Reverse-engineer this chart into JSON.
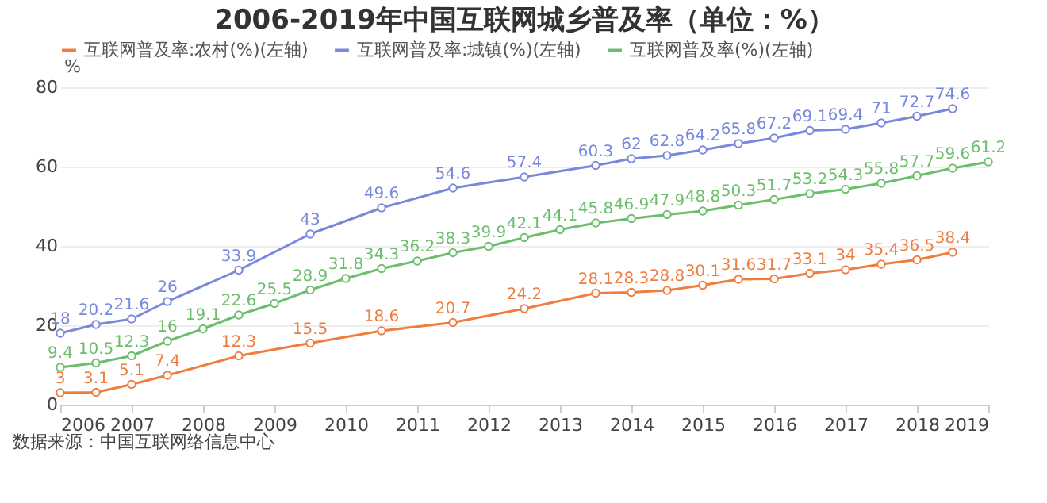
{
  "chart_data": {
    "type": "line",
    "title": "2006-2019年中国互联网城乡普及率（单位：%）",
    "ylabel": "%",
    "annotations": [
      "数据来源：中国互联网络信息中心"
    ],
    "xlim": [
      2006,
      2019
    ],
    "xticks": [
      2006,
      2007,
      2008,
      2009,
      2010,
      2011,
      2012,
      2013,
      2014,
      2015,
      2016,
      2017,
      2018,
      2019
    ],
    "ylim": [
      0,
      80
    ],
    "yticks": [
      0,
      20,
      40,
      60,
      80
    ],
    "grid": "y",
    "legend": "top left",
    "marker": "circle",
    "line_style": "solid",
    "data_labels": true,
    "series": [
      {
        "name": "互联网普及率:农村(%)(左轴)",
        "color": "#ee7d3f",
        "x": [
          2006,
          2006.5,
          2007,
          2007.5,
          2008.5,
          2009.5,
          2010.5,
          2011.5,
          2012.5,
          2013.5,
          2014,
          2014.5,
          2015,
          2015.5,
          2016,
          2016.5,
          2017,
          2017.5,
          2018,
          2018.5
        ],
        "values": [
          3,
          3.1,
          5.1,
          7.4,
          12.3,
          15.5,
          18.6,
          20.7,
          24.2,
          28.1,
          28.3,
          28.8,
          30.1,
          31.6,
          31.7,
          33.1,
          34,
          35.4,
          36.5,
          38.4
        ]
      },
      {
        "name": "互联网普及率:城镇(%)(左轴)",
        "color": "#7888dc",
        "x": [
          2006,
          2006.5,
          2007,
          2007.5,
          2008.5,
          2009.5,
          2010.5,
          2011.5,
          2012.5,
          2013.5,
          2014,
          2014.5,
          2015,
          2015.5,
          2016,
          2016.5,
          2017,
          2017.5,
          2018,
          2018.5
        ],
        "values": [
          18,
          20.2,
          21.6,
          26,
          33.9,
          43,
          49.6,
          54.6,
          57.4,
          60.3,
          62,
          62.8,
          64.2,
          65.8,
          67.2,
          69.1,
          69.4,
          71,
          72.7,
          74.6
        ]
      },
      {
        "name": "互联网普及率(%)(左轴)",
        "color": "#6cbd6c",
        "x": [
          2006,
          2006.5,
          2007,
          2007.5,
          2008,
          2008.5,
          2009,
          2009.5,
          2010,
          2010.5,
          2011,
          2011.5,
          2012,
          2012.5,
          2013,
          2013.5,
          2014,
          2014.5,
          2015,
          2015.5,
          2016,
          2016.5,
          2017,
          2017.5,
          2018,
          2018.5,
          2019
        ],
        "values": [
          9.4,
          10.5,
          12.3,
          16,
          19.1,
          22.6,
          25.5,
          28.9,
          31.8,
          34.3,
          36.2,
          38.3,
          39.9,
          42.1,
          44.1,
          45.8,
          46.9,
          47.9,
          48.8,
          50.3,
          51.7,
          53.2,
          54.3,
          55.8,
          57.7,
          59.6,
          61.2
        ]
      }
    ]
  }
}
